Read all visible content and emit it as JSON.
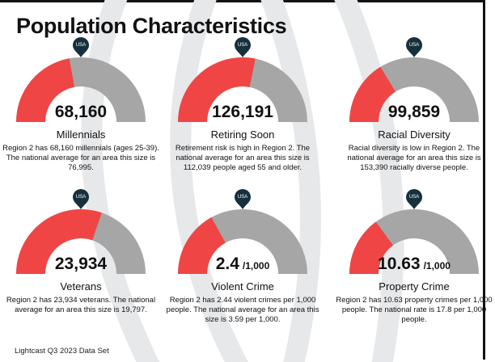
{
  "title": "Population Characteristics",
  "marker_label": "USA",
  "cards": [
    {
      "value": 68160,
      "value_label": "68,160",
      "national": 76995,
      "label": "Millennials",
      "description": "Region 2 has 68,160 millennials (ages 25-39). The national average for an area this size is 76,995."
    },
    {
      "value": 126191,
      "value_label": "126,191",
      "national": 112039,
      "label": "Retiring Soon",
      "description": "Retirement risk is high in Region 2. The national average for an area this size is 112,039 people aged 55 and older."
    },
    {
      "value": 99859,
      "value_label": "99,859",
      "national": 153390,
      "label": "Racial Diversity",
      "description": "Racial diversity is low in Region 2. The national average for an area this size is 153,390 racially diverse people."
    },
    {
      "value": 23934,
      "value_label": "23,934",
      "national": 19797,
      "label": "Veterans",
      "description": "Region 2 has 23,934 veterans. The national average  for an area this size is 19,797."
    },
    {
      "value": 2.44,
      "value_label": "2.4",
      "unit": "/1,000",
      "national": 3.59,
      "label": "Violent Crime",
      "description": "Region 2 has 2.44 violent crimes per 1,000 people. The national average for an area this  size is 3.59 per 1,000."
    },
    {
      "value": 10.63,
      "value_label": "10.63",
      "unit": "/1,000",
      "national": 17.8,
      "label": "Property Crime",
      "description": "Region 2 has 10.63 property crimes per 1,000 people. The national rate is 17.8 per 1,000 people."
    }
  ],
  "footer": "Lightcast Q3 2023 Data Set"
}
